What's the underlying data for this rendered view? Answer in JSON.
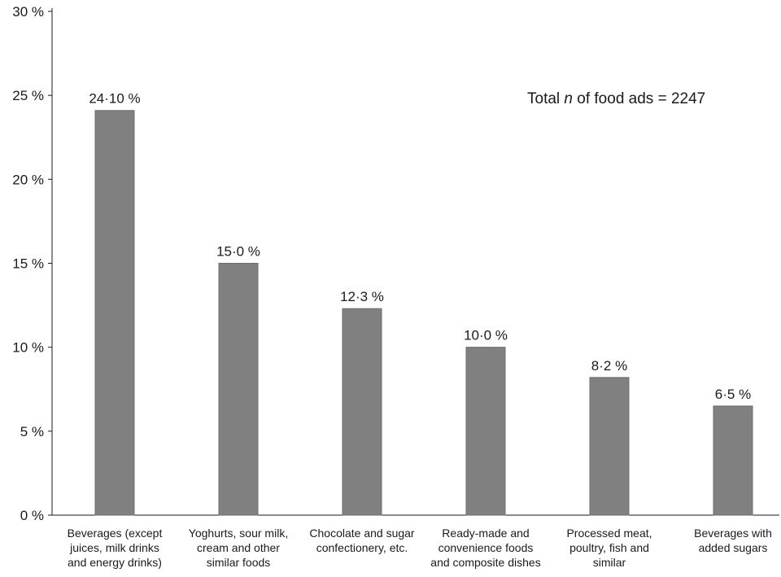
{
  "chart_data": {
    "type": "bar",
    "categories": [
      [
        "Beverages (except",
        "juices, milk drinks",
        "and energy drinks)"
      ],
      [
        "Yoghurts, sour milk,",
        "cream and other",
        "similar foods"
      ],
      [
        "Chocolate and sugar",
        "confectionery, etc."
      ],
      [
        "Ready-made and",
        "convenience foods",
        "and composite dishes"
      ],
      [
        "Processed meat,",
        "poultry, fish and",
        "similar"
      ],
      [
        "Beverages with",
        "added sugars"
      ]
    ],
    "values": [
      24.1,
      15.0,
      12.3,
      10.0,
      8.2,
      6.5
    ],
    "data_labels": [
      "24·10 %",
      "15·0 %",
      "12·3 %",
      "10·0 %",
      "8·2 %",
      "6·5 %"
    ],
    "y_ticks": [
      0,
      5,
      10,
      15,
      20,
      25,
      30
    ],
    "y_tick_labels": [
      "0 %",
      "5 %",
      "10 %",
      "15 %",
      "20 %",
      "25 %",
      "30 %"
    ],
    "ylim": [
      0,
      30
    ],
    "grid": false,
    "bar_color": "#808080",
    "annotation": {
      "prefix": "Total ",
      "italic": "n",
      "suffix": " of food ads = 2247"
    },
    "title": "",
    "xlabel": "",
    "ylabel": ""
  }
}
